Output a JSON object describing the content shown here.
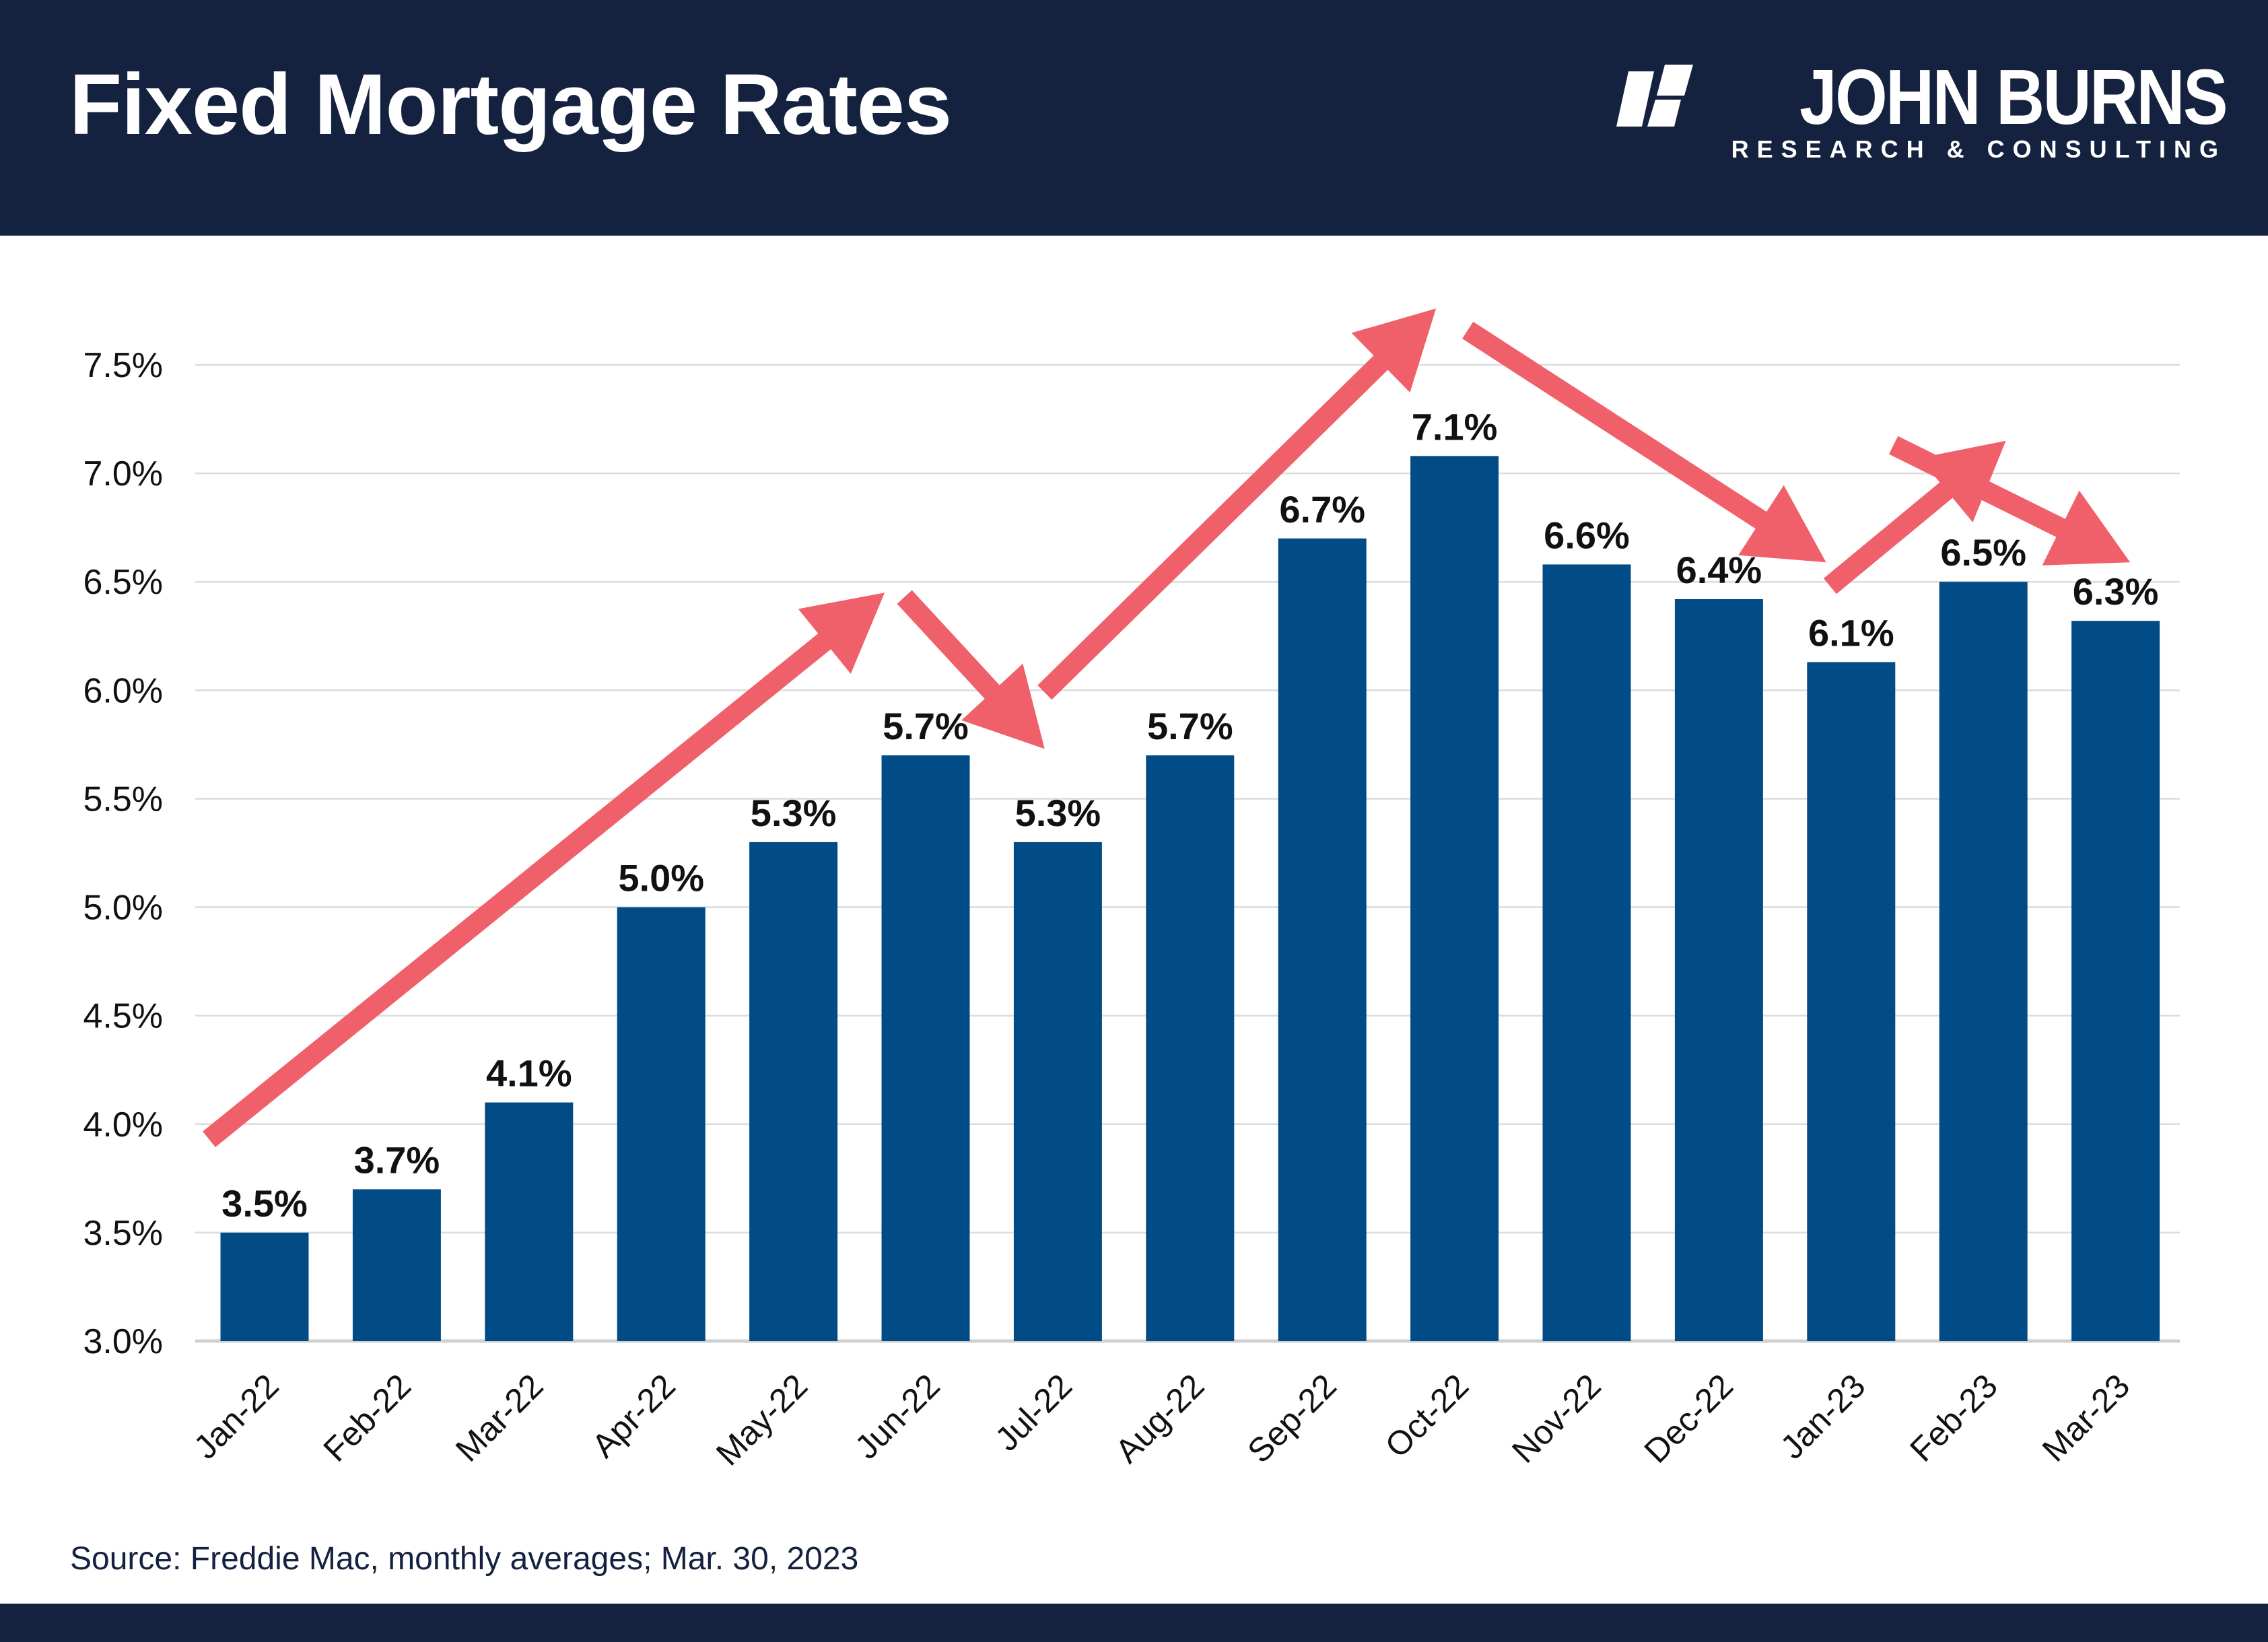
{
  "header": {
    "title": "Fixed Mortgage Rates",
    "logo_name": "JOHN BURNS",
    "logo_sub": "RESEARCH & CONSULTING"
  },
  "footer": {
    "source": "Source: Freddie Mac, monthly averages; Mar. 30, 2023"
  },
  "colors": {
    "bar": "#014c87",
    "arrow": "#f0606a",
    "header": "#14213f",
    "grid": "#dcdcdc"
  },
  "chart_data": {
    "type": "bar",
    "title": "Fixed Mortgage Rates",
    "xlabel": "",
    "ylabel": "",
    "ylim": [
      3.0,
      7.5
    ],
    "grid": true,
    "yticks": [
      "3.0%",
      "3.5%",
      "4.0%",
      "4.5%",
      "5.0%",
      "5.5%",
      "6.0%",
      "6.5%",
      "7.0%",
      "7.5%"
    ],
    "categories": [
      "Jan-22",
      "Feb-22",
      "Mar-22",
      "Apr-22",
      "May-22",
      "Jun-22",
      "Jul-22",
      "Aug-22",
      "Sep-22",
      "Oct-22",
      "Nov-22",
      "Dec-22",
      "Jan-23",
      "Feb-23",
      "Mar-23"
    ],
    "values": [
      3.5,
      3.7,
      4.1,
      5.0,
      5.3,
      5.7,
      5.3,
      5.7,
      6.7,
      7.08,
      6.58,
      6.42,
      6.13,
      6.5,
      6.32
    ],
    "data_labels": [
      "3.5%",
      "3.7%",
      "4.1%",
      "5.0%",
      "5.3%",
      "5.7%",
      "5.3%",
      "5.7%",
      "6.7%",
      "7.1%",
      "6.6%",
      "6.4%",
      "6.1%",
      "6.5%",
      "6.3%"
    ],
    "annotations": [
      {
        "type": "arrow",
        "direction": "up",
        "from": [
          "Jan-22",
          3.93
        ],
        "to": [
          "Jun-22",
          6.45
        ]
      },
      {
        "type": "arrow",
        "direction": "down",
        "from": [
          "Jun-22",
          6.43
        ],
        "to": [
          "Jul-22",
          5.73
        ]
      },
      {
        "type": "arrow",
        "direction": "up",
        "from": [
          "Jul-22",
          5.99
        ],
        "to": [
          "Oct-22",
          7.76
        ]
      },
      {
        "type": "arrow",
        "direction": "down",
        "from": [
          "Oct-22",
          7.66
        ],
        "to": [
          "Jan-23",
          6.59
        ]
      },
      {
        "type": "arrow",
        "direction": "up",
        "from": [
          "Jan-23",
          6.48
        ],
        "to": [
          "Feb-23",
          7.15
        ]
      },
      {
        "type": "arrow",
        "direction": "down",
        "from": [
          "Feb-23",
          7.13
        ],
        "to": [
          "Mar-23",
          6.59
        ]
      }
    ]
  }
}
